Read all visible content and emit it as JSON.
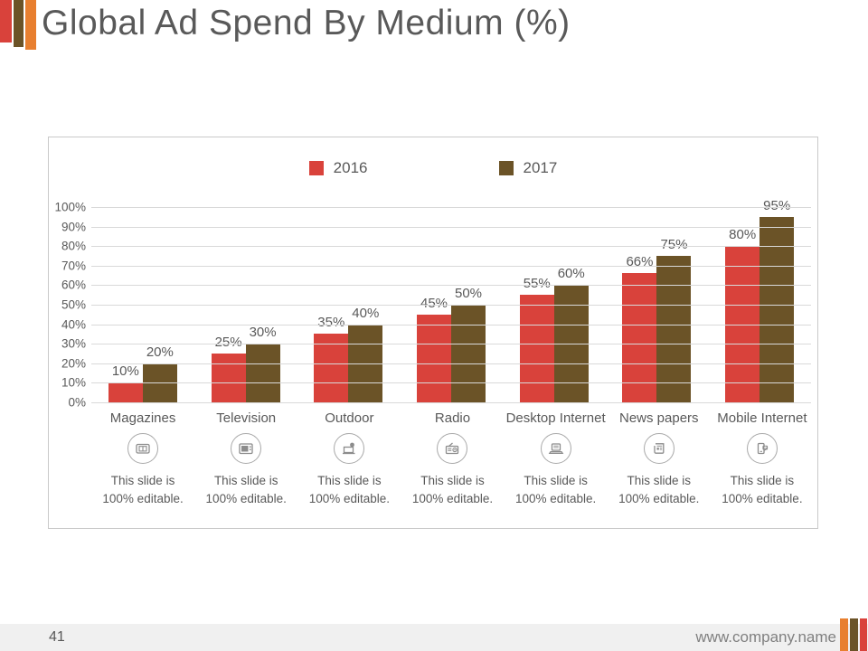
{
  "slide": {
    "title": "Global Ad Spend By Medium (%)",
    "page_number": "41",
    "footer_url": "www.company.name"
  },
  "theme": {
    "accent_red": "#d9423b",
    "accent_brown": "#6b5327",
    "accent_orange": "#e87f2f",
    "text_gray": "#595959",
    "gridline_gray": "#d9d9d9",
    "footer_bg": "#f0f0f0"
  },
  "chart_data": {
    "type": "bar",
    "title": "",
    "categories": [
      "Magazines",
      "Television",
      "Outdoor",
      "Radio",
      "Desktop Internet",
      "News papers",
      "Mobile Internet"
    ],
    "series": [
      {
        "name": "2016",
        "color": "#d9423b",
        "values": [
          10,
          25,
          35,
          45,
          55,
          66,
          80
        ]
      },
      {
        "name": "2017",
        "color": "#6b5327",
        "values": [
          20,
          30,
          40,
          50,
          60,
          75,
          95
        ]
      }
    ],
    "value_label_suffix": "%",
    "ylim": [
      0,
      100
    ],
    "ytick_step": 10,
    "ytick_labels": [
      "0%",
      "10%",
      "20%",
      "30%",
      "40%",
      "50%",
      "60%",
      "70%",
      "80%",
      "90%",
      "100%"
    ],
    "grid": true,
    "legend_position": "top"
  },
  "category_cards": {
    "caption_line1": "This slide is",
    "caption_line2": "100% editable.",
    "icons": [
      "magazine-icon",
      "television-icon",
      "outdoor-icon",
      "radio-icon",
      "desktop-internet-icon",
      "newspaper-icon",
      "mobile-internet-icon"
    ]
  }
}
